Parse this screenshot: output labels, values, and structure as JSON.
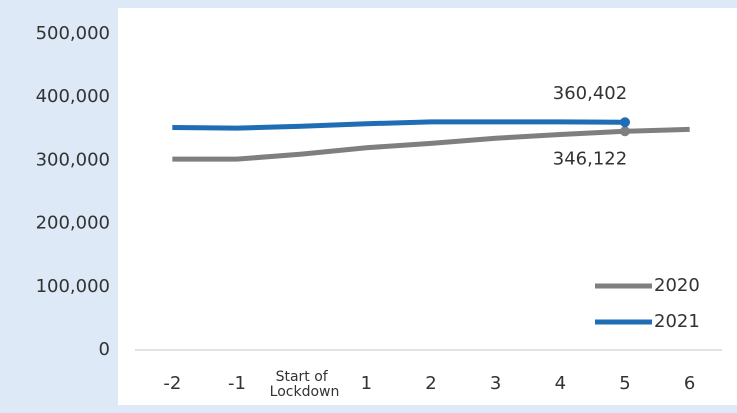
{
  "chart_data": {
    "type": "line",
    "categories": [
      "-2",
      "-1",
      "Start of Lockdown",
      "1",
      "2",
      "3",
      "4",
      "5",
      "6"
    ],
    "series": [
      {
        "name": "2020",
        "color": "#7f7f7f",
        "values": [
          302000,
          302000,
          310000,
          320000,
          327000,
          335000,
          341000,
          346122,
          349000
        ],
        "value_labels": [
          null,
          null,
          null,
          null,
          null,
          null,
          null,
          "346,122",
          null
        ]
      },
      {
        "name": "2021",
        "color": "#1f6db5",
        "values": [
          352000,
          351000,
          354000,
          358000,
          361000,
          361000,
          361000,
          360402,
          null
        ],
        "value_labels": [
          null,
          null,
          null,
          null,
          null,
          null,
          null,
          "360,402",
          null
        ]
      }
    ],
    "ylim": [
      0,
      500000
    ],
    "yticks": [
      0,
      {
        "value": 100000,
        "label": "100,000"
      },
      {
        "value": 200000,
        "label": "200,000"
      },
      {
        "value": 300000,
        "label": "300,000"
      },
      {
        "value": 400000,
        "label": "400,000"
      },
      {
        "value": 500000,
        "label": "500,000"
      }
    ],
    "grid": false,
    "legend": "lower right"
  }
}
